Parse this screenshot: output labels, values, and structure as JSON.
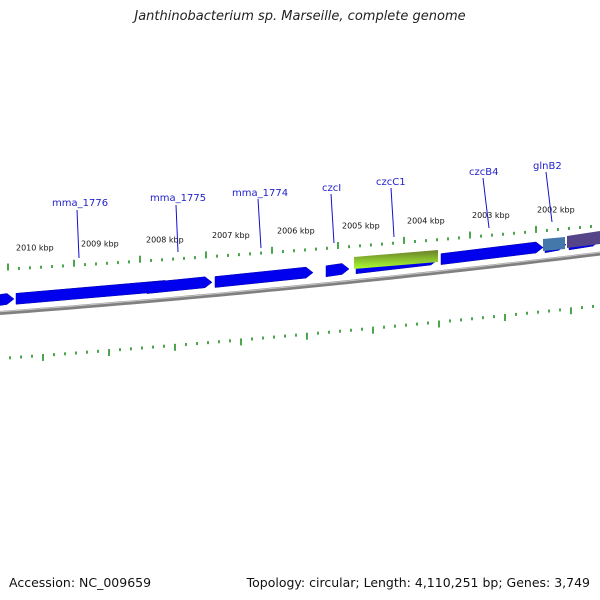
{
  "title": "Janthinobacterium sp. Marseille, complete genome",
  "footer": {
    "accession": "Accession: NC_009659",
    "topology": "Topology: circular; Length: 4,110,251 bp; Genes: 3,749"
  },
  "kbp_labels": [
    "2010 kbp",
    "2009 kbp",
    "2008 kbp",
    "2007 kbp",
    "2006 kbp",
    "2005 kbp",
    "2004 kbp",
    "2003 kbp",
    "2002 kbp"
  ],
  "gene_labels": [
    "mma_1776",
    "mma_1775",
    "mma_1774",
    "czcI",
    "czcC1",
    "czcB4",
    "glnB2"
  ],
  "colors": {
    "cds": "#0000ee",
    "backbone": "#808080",
    "ticks": "#118811",
    "label_line": "#1111cc",
    "rrna_top": "#6a7f2a",
    "rrna_bottom": "#aaff33",
    "teal": "#4477aa",
    "purple": "#554488"
  }
}
